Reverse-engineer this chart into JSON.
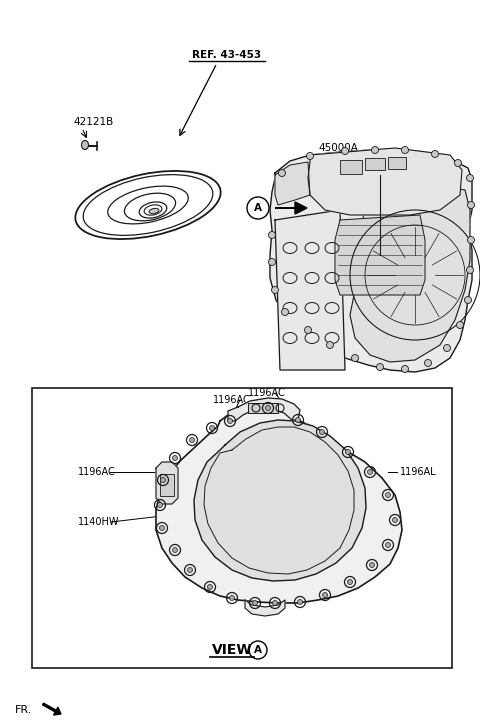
{
  "bg_color": "#ffffff",
  "fig_width": 4.8,
  "fig_height": 7.27,
  "dpi": 100,
  "labels": {
    "ref": "REF. 43-453",
    "part1": "42121B",
    "part2": "45000A",
    "view_label": "VIEW",
    "fr_label": "FR.",
    "label_1196AC_top1": "1196AC",
    "label_1196AC_top2": "1196AC",
    "label_1196AC_left": "1196AC",
    "label_1196AL": "1196AL",
    "label_1140HW": "1140HW",
    "circle_A": "A"
  },
  "colors": {
    "black": "#000000",
    "line": "#1a1a1a",
    "box_border": "#1a1a1a",
    "gray_fill": "#f2f2f2",
    "mid_gray": "#d8d8d8"
  }
}
